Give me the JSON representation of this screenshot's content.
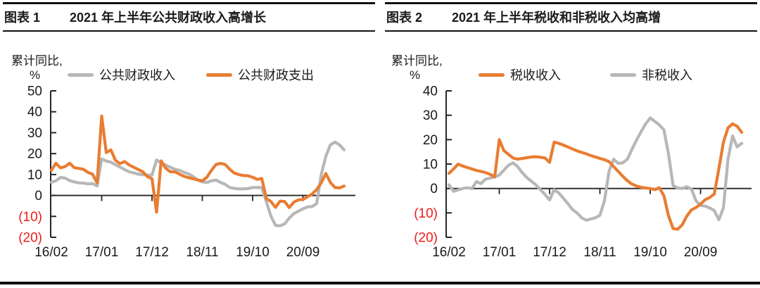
{
  "colors": {
    "orange": "#e87d32",
    "gray": "#b7b7b7",
    "axis": "#262626",
    "text": "#1a1a1a",
    "negative": "#ee1c1c"
  },
  "figures": [
    {
      "caption_label": "图表 1",
      "caption_title": "2021 年上半年公共财政收入高增长",
      "axis_unit_line1": "累计同比,",
      "axis_unit_line2": "%",
      "legend": [
        {
          "label": "公共财政收入",
          "color": "#b7b7b7"
        },
        {
          "label": "公共财政支出",
          "color": "#e87d32"
        }
      ],
      "chart_data": {
        "type": "line",
        "title": "2021 年上半年公共财政收入高增长",
        "ylabel": "累计同比, %",
        "ylim": [
          -20,
          50
        ],
        "grid": false,
        "legend_position": "top",
        "y_ticks": [
          50,
          40,
          30,
          20,
          10,
          0,
          -10,
          -20
        ],
        "y_tick_labels": [
          "50",
          "40",
          "30",
          "20",
          "10",
          "0",
          "(10)",
          "(20)"
        ],
        "x_tick_labels": [
          "16/02",
          "17/01",
          "17/12",
          "18/11",
          "19/10",
          "20/09"
        ],
        "x_tick_month_index": [
          0,
          11,
          22,
          33,
          44,
          55
        ],
        "series": [
          {
            "name": "公共财政收入",
            "color": "#b7b7b7",
            "values": [
              6.3,
              7.0,
              8.6,
              8.3,
              7.1,
              6.5,
              6.0,
              5.9,
              5.5,
              5.7,
              4.5,
              17.5,
              16.4,
              15.9,
              14.7,
              13.6,
              12.4,
              11.3,
              10.8,
              10.2,
              9.9,
              9.7,
              9.8,
              17.0,
              15.5,
              14.5,
              13.5,
              12.5,
              12.0,
              11.0,
              10.3,
              9.0,
              7.4,
              6.5,
              6.2,
              7.0,
              7.4,
              6.2,
              5.3,
              3.8,
              3.4,
              3.1,
              3.2,
              3.3,
              3.8,
              3.8,
              3.8,
              -3.0,
              -9.9,
              -14.3,
              -14.5,
              -13.6,
              -10.8,
              -8.7,
              -7.5,
              -6.4,
              -5.5,
              -5.3,
              -3.9,
              10.0,
              18.7,
              24.2,
              25.5,
              24.2,
              21.8
            ]
          },
          {
            "name": "公共财政支出",
            "color": "#e87d32",
            "values": [
              12.0,
              15.4,
              13.2,
              13.8,
              15.4,
              13.3,
              12.9,
              12.5,
              11.0,
              10.2,
              6.0,
              38.0,
              20.5,
              21.8,
              16.8,
              15.2,
              16.2,
              14.6,
              13.5,
              12.4,
              11.3,
              9.0,
              8.0,
              -8.0,
              16.5,
              13.0,
              11.3,
              11.3,
              10.2,
              9.1,
              8.5,
              8.0,
              7.4,
              7.0,
              8.7,
              12.0,
              14.8,
              15.3,
              14.8,
              12.5,
              10.7,
              10.0,
              9.5,
              9.4,
              8.7,
              7.7,
              8.1,
              -1.5,
              -2.9,
              -5.7,
              -2.7,
              -2.9,
              -5.8,
              -3.2,
              -2.1,
              -1.9,
              -0.6,
              0.7,
              2.8,
              6.0,
              10.5,
              6.2,
              3.8,
              3.6,
              4.5
            ]
          }
        ]
      }
    },
    {
      "caption_label": "图表 2",
      "caption_title": "2021 年上半年税收和非税收入均高增",
      "axis_unit_line1": "累计同比,",
      "axis_unit_line2": "%",
      "legend": [
        {
          "label": "税收收入",
          "color": "#e87d32"
        },
        {
          "label": "非税收入",
          "color": "#b7b7b7"
        }
      ],
      "chart_data": {
        "type": "line",
        "title": "2021 年上半年税收和非税收入均高增",
        "ylabel": "累计同比, %",
        "ylim": [
          -20,
          40
        ],
        "grid": false,
        "legend_position": "top",
        "y_ticks": [
          40,
          30,
          20,
          10,
          0,
          -10,
          -20
        ],
        "y_tick_labels": [
          "40",
          "30",
          "20",
          "10",
          "0",
          "(10)",
          "(20)"
        ],
        "x_tick_labels": [
          "16/02",
          "17/01",
          "17/12",
          "18/11",
          "19/10",
          "20/09"
        ],
        "x_tick_month_index": [
          0,
          11,
          22,
          33,
          44,
          55
        ],
        "series": [
          {
            "name": "非税收入",
            "color": "#b7b7b7",
            "values": [
              1.5,
              -1.2,
              -0.6,
              0.0,
              0.3,
              0.0,
              2.8,
              2.0,
              3.8,
              4.3,
              4.7,
              5.5,
              7.5,
              9.5,
              10.5,
              9.0,
              6.5,
              4.5,
              3.0,
              1.5,
              -0.5,
              -2.5,
              -4.7,
              -0.5,
              -1.8,
              -4.0,
              -6.2,
              -8.6,
              -10.0,
              -12.0,
              -13.0,
              -12.5,
              -12.0,
              -11.0,
              -5.0,
              7.0,
              12.0,
              10.3,
              10.5,
              12.0,
              16.0,
              19.8,
              23.2,
              26.5,
              28.9,
              27.5,
              26.0,
              24.0,
              14.0,
              1.2,
              0.2,
              0.0,
              0.7,
              -0.2,
              -5.0,
              -7.0,
              -7.2,
              -8.0,
              -9.0,
              -12.8,
              -8.0,
              12.0,
              21.5,
              17.0,
              18.5
            ]
          },
          {
            "name": "税收收入",
            "color": "#e87d32",
            "values": [
              6.2,
              8.0,
              10.0,
              9.2,
              8.6,
              8.0,
              7.4,
              7.0,
              6.5,
              5.8,
              4.8,
              20.0,
              15.5,
              14.0,
              12.5,
              12.0,
              12.3,
              12.6,
              12.9,
              13.0,
              12.8,
              12.5,
              10.7,
              19.0,
              18.5,
              17.8,
              17.0,
              16.2,
              15.4,
              14.8,
              14.2,
              13.5,
              12.9,
              12.3,
              11.8,
              11.0,
              9.0,
              7.0,
              5.0,
              3.2,
              1.8,
              1.0,
              0.5,
              0.2,
              0.0,
              -0.5,
              0.3,
              -3.0,
              -11.2,
              -16.4,
              -16.7,
              -14.9,
              -11.3,
              -8.8,
              -7.8,
              -6.4,
              -4.6,
              -3.7,
              -2.3,
              8.0,
              18.9,
              24.8,
              26.5,
              25.5,
              23.0
            ]
          }
        ]
      }
    }
  ]
}
